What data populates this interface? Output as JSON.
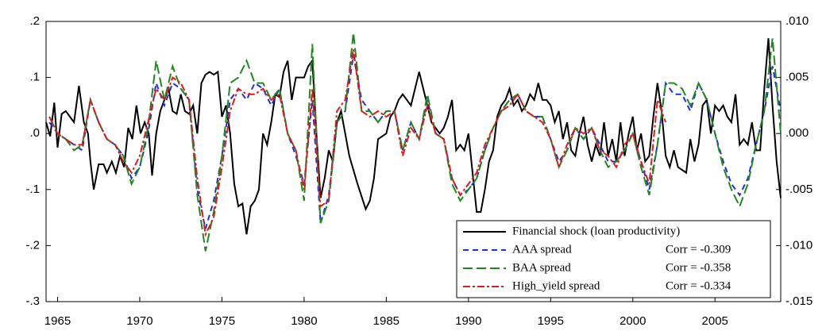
{
  "chart_data": {
    "type": "line",
    "xlim": [
      1964.3,
      2009.0
    ],
    "xticks": [
      1965,
      1970,
      1975,
      1980,
      1985,
      1990,
      1995,
      2000,
      2005
    ],
    "ylim": [
      -0.3,
      0.2
    ],
    "yticks": [
      {
        "value": -0.3,
        "label": "-.3"
      },
      {
        "value": -0.2,
        "label": "-.2"
      },
      {
        "value": -0.1,
        "label": "-.1"
      },
      {
        "value": 0,
        "label": ".0"
      },
      {
        "value": 0.1,
        "label": ".1"
      },
      {
        "value": 0.2,
        "label": ".2"
      }
    ],
    "y2lim": [
      -0.015,
      0.01
    ],
    "y2ticks": [
      {
        "value": -0.015,
        "label": "-.015"
      },
      {
        "value": -0.01,
        "label": "-.010"
      },
      {
        "value": -0.005,
        "label": "-.005"
      },
      {
        "value": 0,
        "label": ".000"
      },
      {
        "value": 0.005,
        "label": ".005"
      },
      {
        "value": 0.01,
        "label": ".010"
      }
    ],
    "grid": false,
    "legend": "lower right",
    "series": [
      {
        "name": "Financial shock (loan productivity)",
        "color": "#000000",
        "dash": "none",
        "axis": "y",
        "x": [
          1964.3,
          1964.55,
          1964.8,
          1965.0,
          1965.25,
          1965.5,
          1965.75,
          1966.0,
          1966.3,
          1966.6,
          1966.85,
          1967.0,
          1967.2,
          1967.5,
          1967.8,
          1968.0,
          1968.3,
          1968.55,
          1968.8,
          1969.05,
          1969.3,
          1969.55,
          1969.8,
          1970.05,
          1970.3,
          1970.55,
          1970.75,
          1971.0,
          1971.25,
          1971.5,
          1971.75,
          1972.0,
          1972.25,
          1972.5,
          1972.75,
          1973.0,
          1973.25,
          1973.5,
          1973.75,
          1974.0,
          1974.25,
          1974.5,
          1974.75,
          1975.0,
          1975.25,
          1975.5,
          1975.75,
          1976.0,
          1976.25,
          1976.5,
          1976.75,
          1977.0,
          1977.25,
          1977.5,
          1977.75,
          1978.0,
          1978.25,
          1978.5,
          1978.75,
          1979.0,
          1979.25,
          1979.5,
          1979.75,
          1980.0,
          1980.25,
          1980.5,
          1980.75,
          1981.0,
          1981.25,
          1981.5,
          1981.75,
          1982.0,
          1982.25,
          1982.5,
          1982.75,
          1983.25,
          1983.75,
          1984.0,
          1984.25,
          1984.5,
          1985.0,
          1985.25,
          1985.5,
          1985.75,
          1986.0,
          1986.25,
          1986.5,
          1986.75,
          1987.0,
          1987.25,
          1987.5,
          1987.75,
          1988.25,
          1988.5,
          1988.75,
          1989.0,
          1989.25,
          1989.5,
          1989.75,
          1990.0,
          1990.25,
          1990.5,
          1990.75,
          1991.0,
          1991.25,
          1991.5,
          1991.75,
          1992.0,
          1992.25,
          1992.5,
          1992.75,
          1993.0,
          1993.25,
          1993.5,
          1993.75,
          1994.0,
          1994.25,
          1994.5,
          1994.75,
          1995.0,
          1995.25,
          1995.5,
          1995.75,
          1996.0,
          1996.25,
          1996.5,
          1996.75,
          1997.0,
          1997.25,
          1997.5,
          1997.75,
          1998.0,
          1998.25,
          1998.5,
          1998.75,
          1999.0,
          1999.25,
          1999.5,
          1999.75,
          2000.0,
          2000.25,
          2000.5,
          2000.75,
          2001.0,
          2001.25,
          2001.5,
          2001.75,
          2002.0,
          2002.25,
          2002.5,
          2002.75,
          2003.0,
          2003.25,
          2003.5,
          2003.75,
          2004.0,
          2004.25,
          2004.5,
          2004.75,
          2005.0,
          2005.25,
          2005.5,
          2005.75,
          2006.0,
          2006.25,
          2006.5,
          2006.75,
          2007.0,
          2007.25,
          2007.5,
          2007.75,
          2008.0,
          2008.25,
          2008.5,
          2008.75,
          2009.0
        ],
        "values": [
          0.02,
          -0.005,
          0.055,
          -0.025,
          0.035,
          0.04,
          0.03,
          0.02,
          0.085,
          0.02,
          0.0,
          -0.05,
          -0.1,
          -0.055,
          -0.055,
          -0.07,
          -0.05,
          -0.07,
          -0.04,
          -0.06,
          0.01,
          -0.01,
          0.05,
          0.0,
          0.02,
          0.0,
          -0.075,
          0.0,
          0.04,
          0.06,
          0.08,
          0.04,
          0.035,
          0.07,
          0.04,
          0.035,
          0.05,
          0.0,
          0.09,
          0.105,
          0.11,
          0.105,
          0.11,
          0.03,
          0.05,
          0.0,
          -0.09,
          -0.13,
          -0.125,
          -0.18,
          -0.13,
          -0.12,
          -0.1,
          0.0,
          -0.02,
          0.02,
          0.07,
          0.065,
          0.11,
          0.13,
          0.06,
          0.1,
          0.1,
          0.1,
          0.12,
          0.13,
          0.0,
          -0.115,
          -0.08,
          -0.03,
          -0.05,
          0.02,
          0.04,
          0.0,
          -0.04,
          -0.09,
          -0.135,
          -0.12,
          -0.08,
          -0.01,
          0.0,
          0.03,
          0.04,
          0.06,
          0.07,
          0.06,
          0.05,
          0.08,
          0.11,
          0.08,
          0.05,
          0.02,
          0.0,
          0.01,
          0.03,
          0.06,
          -0.03,
          -0.02,
          -0.03,
          0.0,
          -0.07,
          -0.14,
          -0.14,
          -0.1,
          -0.05,
          -0.03,
          0.03,
          0.05,
          0.06,
          0.08,
          0.05,
          0.06,
          0.04,
          0.05,
          0.07,
          0.06,
          0.09,
          0.06,
          0.06,
          0.05,
          0.02,
          0.04,
          -0.01,
          0.02,
          -0.03,
          -0.04,
          0.0,
          0.03,
          -0.02,
          -0.05,
          -0.02,
          -0.04,
          0.02,
          -0.04,
          -0.01,
          -0.05,
          0.02,
          -0.04,
          0.0,
          0.03,
          -0.03,
          0.0,
          -0.05,
          -0.04,
          0.03,
          0.09,
          0.04,
          -0.04,
          -0.06,
          -0.03,
          -0.06,
          -0.065,
          -0.07,
          -0.01,
          -0.05,
          -0.02,
          0.05,
          0.06,
          0.0,
          0.05,
          0.04,
          0.05,
          0.03,
          0.02,
          0.07,
          -0.02,
          -0.01,
          -0.02,
          0.02,
          -0.03,
          -0.03,
          0.08,
          0.17,
          0.05,
          -0.05,
          -0.115
        ]
      },
      {
        "name": "AAA spread",
        "annotation": "Corr = -0.309",
        "color": "#1f2fe0",
        "dash": "7,5",
        "axis": "y2",
        "x": [
          1964.5,
          1965.0,
          1965.5,
          1966.0,
          1966.5,
          1967.0,
          1967.5,
          1968.0,
          1968.5,
          1969.0,
          1969.5,
          1970.0,
          1970.5,
          1971.0,
          1971.5,
          1972.0,
          1972.5,
          1973.0,
          1973.5,
          1974.0,
          1974.5,
          1975.0,
          1975.5,
          1976.0,
          1976.5,
          1977.0,
          1977.5,
          1978.0,
          1978.5,
          1979.0,
          1979.5,
          1980.0,
          1980.5,
          1981.0,
          1981.5,
          1982.0,
          1982.5,
          1983.0,
          1983.5,
          1984.0,
          1984.5,
          1985.0,
          1985.5,
          1986.0,
          1986.5,
          1987.0,
          1987.5,
          1988.0,
          1988.5,
          1989.0,
          1989.5,
          1990.0,
          1990.5,
          1991.0,
          1991.5,
          1992.0,
          1992.5,
          1993.0,
          1993.5,
          1994.0,
          1994.5,
          1995.0,
          1995.5,
          1996.0,
          1996.5,
          1997.0,
          1997.5,
          1998.0,
          1998.5,
          1999.0,
          1999.5,
          2000.0,
          2000.5,
          2001.0,
          2001.5,
          2002.0,
          2002.5,
          2003.0,
          2003.5,
          2004.0,
          2004.5,
          2005.0,
          2005.5,
          2006.0,
          2006.5,
          2007.0,
          2007.5,
          2008.0,
          2008.5,
          2009.0
        ],
        "values": [
          0.001,
          0.0,
          -0.0005,
          -0.001,
          -0.0015,
          0.003,
          0.001,
          -0.0005,
          -0.001,
          -0.002,
          -0.004,
          -0.003,
          0.0,
          0.0045,
          0.0025,
          0.0045,
          0.004,
          0.003,
          -0.005,
          -0.0085,
          -0.006,
          -0.002,
          0.003,
          0.004,
          0.003,
          0.0045,
          0.004,
          0.0025,
          0.004,
          0.0,
          -0.002,
          -0.0045,
          0.003,
          -0.008,
          -0.0055,
          0.001,
          0.002,
          0.007,
          0.003,
          0.002,
          0.001,
          0.002,
          0.002,
          -0.0015,
          0.001,
          -0.0005,
          0.003,
          0.0,
          -0.0005,
          -0.004,
          -0.0055,
          -0.005,
          -0.004,
          -0.0015,
          0.0005,
          0.002,
          0.003,
          0.0035,
          0.002,
          0.0015,
          0.0015,
          -0.0005,
          -0.0025,
          -0.0015,
          0.0005,
          -0.0005,
          0.0005,
          -0.001,
          -0.0025,
          -0.0025,
          -0.0015,
          0.0,
          -0.0025,
          -0.005,
          -0.001,
          0.0045,
          0.0035,
          0.0035,
          0.002,
          0.0045,
          0.003,
          0.0,
          -0.0025,
          -0.0045,
          -0.0055,
          -0.004,
          -0.001,
          0.002,
          0.006,
          0.002
        ]
      },
      {
        "name": "BAA spread",
        "annotation": "Corr = -0.358",
        "color": "#1e8a1e",
        "dash": "12,5",
        "axis": "y2",
        "x": [
          1964.5,
          1965.0,
          1965.5,
          1966.0,
          1966.5,
          1967.0,
          1967.5,
          1968.0,
          1968.5,
          1969.0,
          1969.5,
          1970.0,
          1970.5,
          1971.0,
          1971.5,
          1972.0,
          1972.5,
          1973.0,
          1973.5,
          1974.0,
          1974.5,
          1975.0,
          1975.5,
          1976.0,
          1976.5,
          1977.0,
          1977.5,
          1978.0,
          1978.5,
          1979.0,
          1979.5,
          1980.0,
          1980.5,
          1981.0,
          1981.5,
          1982.0,
          1982.5,
          1983.0,
          1983.5,
          1984.0,
          1984.5,
          1985.0,
          1985.5,
          1986.0,
          1986.5,
          1987.0,
          1987.5,
          1988.0,
          1988.5,
          1989.0,
          1989.5,
          1990.0,
          1990.5,
          1991.0,
          1991.5,
          1992.0,
          1992.5,
          1993.0,
          1993.5,
          1994.0,
          1994.5,
          1995.0,
          1995.5,
          1996.0,
          1996.5,
          1997.0,
          1997.5,
          1998.0,
          1998.5,
          1999.0,
          1999.5,
          2000.0,
          2000.5,
          2001.0,
          2001.5,
          2002.0,
          2002.5,
          2003.0,
          2003.5,
          2004.0,
          2004.5,
          2005.0,
          2005.5,
          2006.0,
          2006.5,
          2007.0,
          2007.5,
          2008.0,
          2008.5,
          2009.0
        ],
        "values": [
          0.0015,
          0.0,
          -0.0005,
          -0.0015,
          -0.001,
          0.003,
          0.001,
          -0.0005,
          -0.001,
          -0.002,
          -0.0045,
          -0.003,
          0.0005,
          0.0065,
          0.003,
          0.006,
          0.004,
          0.003,
          -0.0055,
          -0.0105,
          -0.007,
          -0.002,
          0.0045,
          0.005,
          0.0065,
          0.0045,
          0.0045,
          0.003,
          0.004,
          0.0,
          -0.0015,
          -0.006,
          0.008,
          -0.008,
          -0.006,
          0.001,
          0.002,
          0.009,
          0.002,
          0.002,
          0.001,
          0.002,
          0.002,
          -0.0015,
          0.001,
          -0.0005,
          0.0035,
          0.0,
          -0.0005,
          -0.0045,
          -0.006,
          -0.005,
          -0.004,
          -0.0015,
          0.0005,
          0.002,
          0.003,
          0.0035,
          0.002,
          0.0015,
          0.0015,
          -0.0005,
          -0.003,
          -0.0015,
          0.0005,
          -0.0005,
          0.0005,
          -0.0015,
          -0.003,
          -0.0025,
          -0.0015,
          0.0,
          -0.003,
          -0.0055,
          -0.001,
          0.0045,
          0.0045,
          0.004,
          0.0025,
          0.0045,
          0.003,
          0.0,
          -0.003,
          -0.005,
          -0.0065,
          -0.0045,
          -0.001,
          0.002,
          0.0085,
          0.0
        ]
      },
      {
        "name": "High_yield spread",
        "annotation": "Corr = -0.334",
        "color": "#e01a1a",
        "dash": "9,3,3,3",
        "axis": "y2",
        "x": [
          1964.5,
          1965.0,
          1965.5,
          1966.0,
          1966.5,
          1967.0,
          1967.5,
          1968.0,
          1968.5,
          1969.0,
          1969.5,
          1970.0,
          1970.5,
          1971.0,
          1971.5,
          1972.0,
          1972.5,
          1973.0,
          1973.5,
          1974.0,
          1974.5,
          1975.0,
          1975.5,
          1976.0,
          1976.5,
          1977.0,
          1977.5,
          1978.0,
          1978.5,
          1979.0,
          1979.5,
          1980.0,
          1980.5,
          1981.0,
          1981.5,
          1982.0,
          1982.5,
          1983.0,
          1983.5,
          1984.0,
          1984.5,
          1985.0,
          1985.5,
          1986.0,
          1986.5,
          1987.0,
          1987.5,
          1988.0,
          1988.5,
          1989.0,
          1989.5,
          1990.0,
          1990.5,
          1991.0,
          1991.5,
          1992.0,
          1992.5,
          1993.0,
          1993.5,
          1994.0,
          1994.5,
          1995.0,
          1995.5,
          1996.0,
          1996.5,
          1997.0,
          1997.5,
          1998.0,
          1998.5,
          1999.0,
          1999.5,
          2000.0,
          2000.5,
          2001.0,
          2001.5,
          2002.0
        ],
        "values": [
          0.0015,
          0.0,
          -0.0005,
          -0.001,
          -0.001,
          0.003,
          0.001,
          -0.0005,
          -0.001,
          -0.0025,
          -0.0035,
          -0.002,
          0.001,
          0.004,
          0.003,
          0.005,
          0.0045,
          0.003,
          -0.004,
          -0.009,
          -0.0075,
          -0.003,
          0.002,
          0.004,
          0.0035,
          0.0035,
          0.004,
          0.003,
          0.0035,
          0.0,
          -0.0015,
          -0.005,
          0.004,
          -0.0065,
          -0.006,
          0.002,
          0.003,
          0.0075,
          0.002,
          0.0015,
          0.002,
          0.0015,
          0.002,
          -0.002,
          0.0005,
          -0.0005,
          0.0025,
          0.0,
          -0.0005,
          -0.004,
          -0.0055,
          -0.0045,
          -0.0035,
          -0.001,
          0.0005,
          0.002,
          0.0025,
          0.0035,
          0.002,
          0.0015,
          0.001,
          -0.0005,
          -0.003,
          -0.001,
          0.0005,
          0.0,
          0.0005,
          -0.0015,
          -0.002,
          -0.003,
          -0.001,
          0.0,
          -0.0025,
          -0.0045,
          0.003,
          0.001
        ]
      }
    ]
  }
}
